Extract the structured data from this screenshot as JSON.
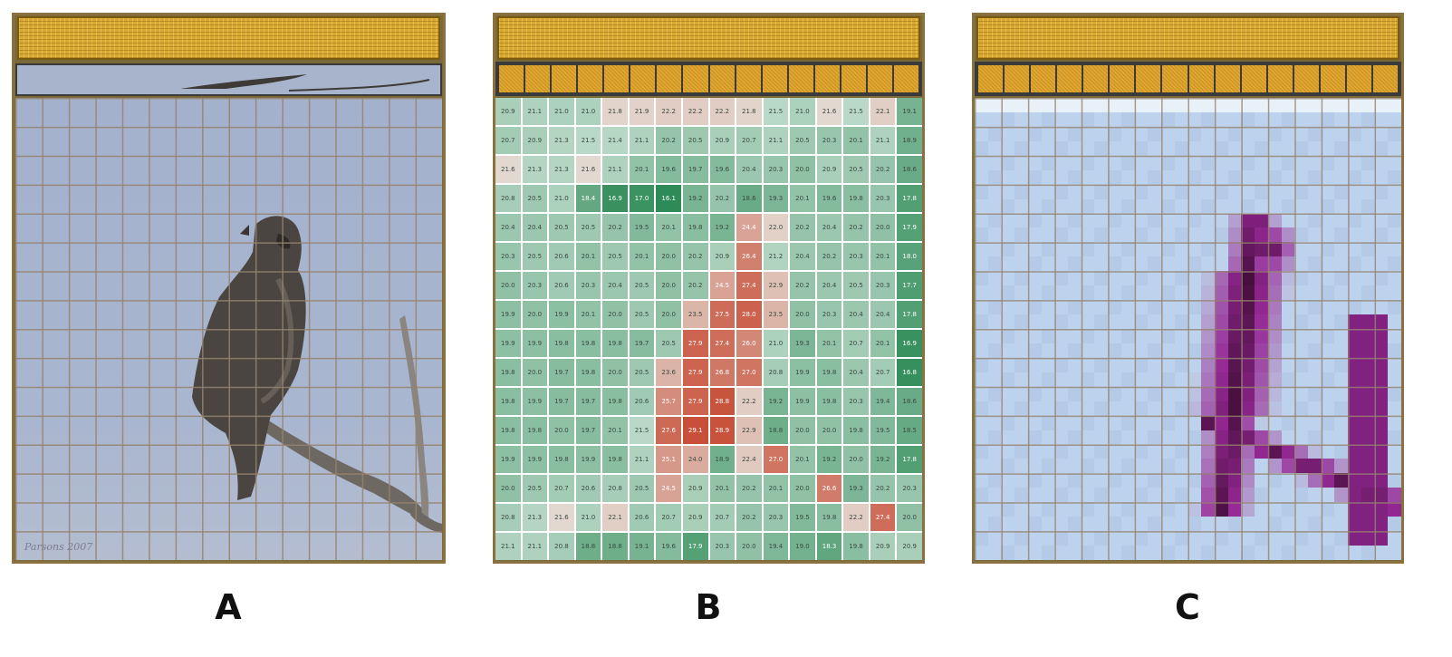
{
  "panels": [
    {
      "label": "A",
      "watermark": "Parsons 2007"
    },
    {
      "label": "B"
    },
    {
      "label": "C"
    }
  ],
  "colors": {
    "chip_gold": "#d9a830",
    "sky": "#a9b6cf",
    "heat_low": "#2e8b57",
    "heat_mid": "#e8f2ec",
    "heat_high": "#c8503a",
    "density_low": "#b8d0ea",
    "density_high": "#4a0f40"
  },
  "heatmap_values": [
    [
      "20.9",
      "21.1",
      "21.0",
      "21.0",
      "21.8",
      "21.9",
      "22.2",
      "22.2",
      "22.2",
      "21.8",
      "21.5",
      "21.0",
      "21.6",
      "21.5",
      "22.1",
      "19.1"
    ],
    [
      "20.7",
      "20.9",
      "21.3",
      "21.5",
      "21.4",
      "21.1",
      "20.2",
      "20.5",
      "20.9",
      "20.7",
      "21.1",
      "20.5",
      "20.3",
      "20.1",
      "21.1",
      "18.9"
    ],
    [
      "21.6",
      "21.3",
      "21.3",
      "21.6",
      "21.1",
      "20.1",
      "19.6",
      "19.7",
      "19.6",
      "20.4",
      "20.3",
      "20.0",
      "20.9",
      "20.5",
      "20.2",
      "18.6"
    ],
    [
      "20.8",
      "20.5",
      "21.0",
      "18.4",
      "16.9",
      "17.0",
      "16.1",
      "19.2",
      "20.2",
      "18.6",
      "19.3",
      "20.1",
      "19.6",
      "19.8",
      "20.3",
      "17.8"
    ],
    [
      "20.4",
      "20.4",
      "20.5",
      "20.5",
      "20.2",
      "19.5",
      "20.1",
      "19.8",
      "19.2",
      "24.4",
      "22.0",
      "20.2",
      "20.4",
      "20.2",
      "20.0",
      "17.9"
    ],
    [
      "20.3",
      "20.5",
      "20.6",
      "20.1",
      "20.5",
      "20.1",
      "20.0",
      "20.2",
      "20.9",
      "26.4",
      "21.2",
      "20.4",
      "20.2",
      "20.3",
      "20.1",
      "18.0"
    ],
    [
      "20.0",
      "20.3",
      "20.6",
      "20.3",
      "20.4",
      "20.5",
      "20.0",
      "20.2",
      "24.5",
      "27.4",
      "22.9",
      "20.2",
      "20.4",
      "20.5",
      "20.3",
      "17.7"
    ],
    [
      "19.9",
      "20.0",
      "19.9",
      "20.1",
      "20.0",
      "20.5",
      "20.0",
      "23.5",
      "27.5",
      "28.0",
      "23.5",
      "20.0",
      "20.3",
      "20.4",
      "20.4",
      "17.8"
    ],
    [
      "19.9",
      "19.9",
      "19.8",
      "19.8",
      "19.8",
      "19.7",
      "20.5",
      "27.9",
      "27.4",
      "26.0",
      "21.0",
      "19.3",
      "20.1",
      "20.7",
      "20.1",
      "16.9"
    ],
    [
      "19.8",
      "20.0",
      "19.7",
      "19.8",
      "20.0",
      "20.5",
      "23.6",
      "27.9",
      "26.8",
      "27.0",
      "20.8",
      "19.9",
      "19.8",
      "20.4",
      "20.7",
      "16.8"
    ],
    [
      "19.8",
      "19.9",
      "19.7",
      "19.7",
      "19.8",
      "20.6",
      "25.7",
      "27.9",
      "28.8",
      "22.2",
      "19.2",
      "19.9",
      "19.8",
      "20.3",
      "19.4",
      "18.6"
    ],
    [
      "19.8",
      "19.8",
      "20.0",
      "19.7",
      "20.1",
      "21.5",
      "27.6",
      "29.1",
      "28.9",
      "22.9",
      "18.8",
      "20.0",
      "20.0",
      "19.8",
      "19.5",
      "18.5"
    ],
    [
      "19.9",
      "19.9",
      "19.8",
      "19.9",
      "19.8",
      "21.1",
      "25.1",
      "24.0",
      "18.9",
      "22.4",
      "27.0",
      "20.1",
      "19.2",
      "20.0",
      "19.2",
      "17.8"
    ],
    [
      "20.0",
      "20.5",
      "20.7",
      "20.6",
      "20.8",
      "20.5",
      "24.5",
      "20.9",
      "20.1",
      "20.2",
      "20.1",
      "20.0",
      "26.6",
      "19.3",
      "20.2",
      "20.3"
    ],
    [
      "20.8",
      "21.3",
      "21.6",
      "21.0",
      "22.1",
      "20.6",
      "20.7",
      "20.9",
      "20.7",
      "20.2",
      "20.3",
      "19.5",
      "19.8",
      "22.2",
      "27.4",
      "20.0"
    ],
    [
      "21.1",
      "21.1",
      "20.8",
      "18.8",
      "18.8",
      "19.1",
      "19.6",
      "17.9",
      "20.3",
      "20.0",
      "19.4",
      "19.0",
      "18.3",
      "19.8",
      "20.9",
      "20.9"
    ]
  ]
}
